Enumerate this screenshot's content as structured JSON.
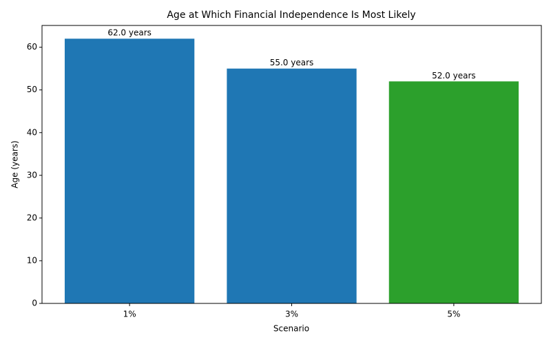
{
  "chart_data": {
    "type": "bar",
    "title": "Age at Which Financial Independence Is Most Likely",
    "xlabel": "Scenario",
    "ylabel": "Age (years)",
    "categories": [
      "1%",
      "3%",
      "5%"
    ],
    "values": [
      62,
      55,
      52
    ],
    "value_labels": [
      "62.0 years",
      "55.0 years",
      "52.0 years"
    ],
    "colors": [
      "#1f77b4",
      "#1f77b4",
      "#2ca02c"
    ],
    "ylim": [
      0,
      65.1
    ],
    "yticks": [
      0,
      10,
      20,
      30,
      40,
      50,
      60
    ],
    "grid": false
  }
}
